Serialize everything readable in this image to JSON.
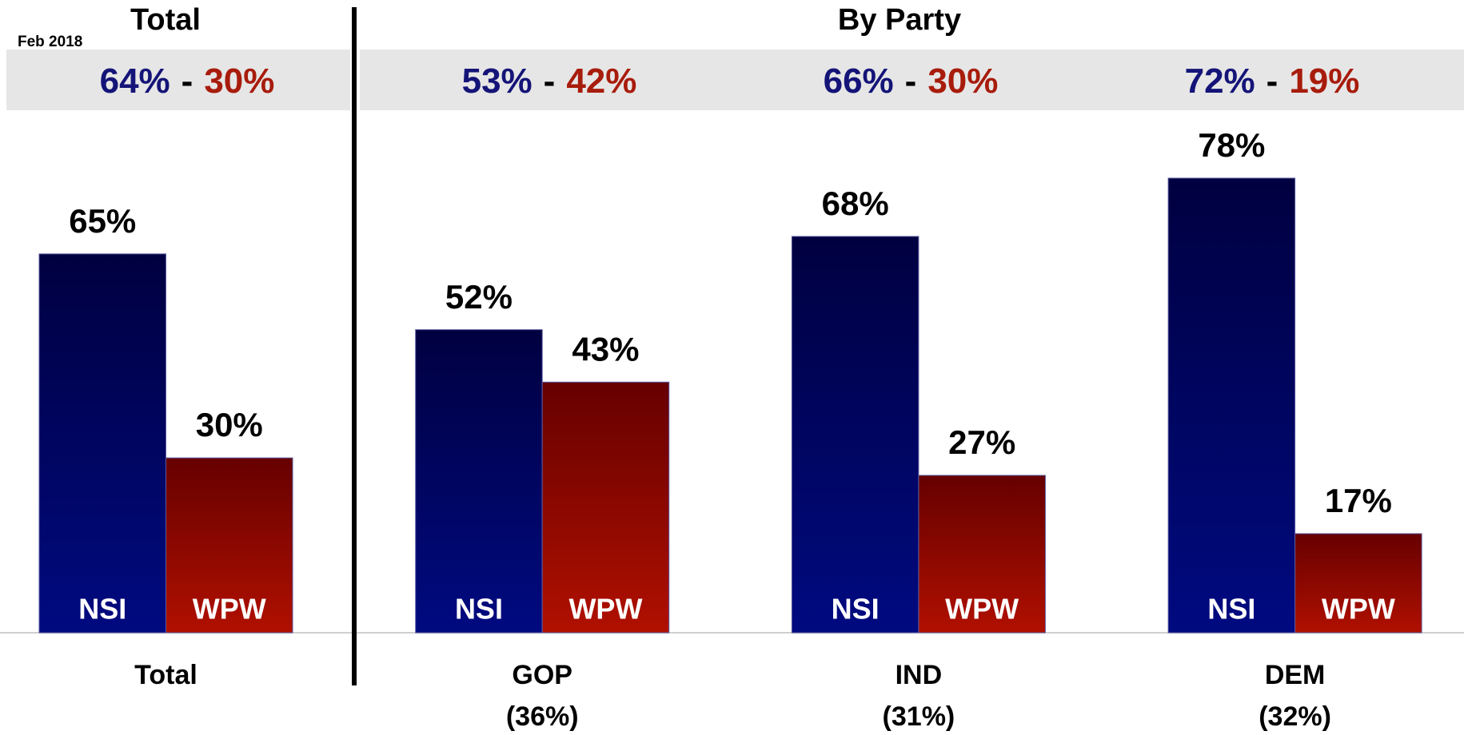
{
  "chart_data": {
    "type": "bar",
    "title": "Total",
    "subtitle": "By Party",
    "date": "Feb 2018",
    "summary_separator": "-",
    "summary": [
      [
        "64%",
        "30%"
      ],
      [
        "53%",
        "42%"
      ],
      [
        "66%",
        "30%"
      ],
      [
        "72%",
        "19%"
      ]
    ],
    "categories": [
      "Total",
      "GOP",
      "IND",
      "DEM"
    ],
    "category_sublabels": [
      null,
      "(36%)",
      "(31%)",
      "(32%)"
    ],
    "series": [
      {
        "name": "NSI",
        "color": "#000a80",
        "values": [
          65,
          52,
          68,
          78
        ],
        "value_labels": [
          "65%",
          "52%",
          "68%",
          "78%"
        ]
      },
      {
        "name": "WPW",
        "color": "#b01000",
        "values": [
          30,
          43,
          27,
          17
        ],
        "value_labels": [
          "30%",
          "43%",
          "27%",
          "17%"
        ]
      }
    ],
    "ylim": [
      0,
      100
    ]
  }
}
